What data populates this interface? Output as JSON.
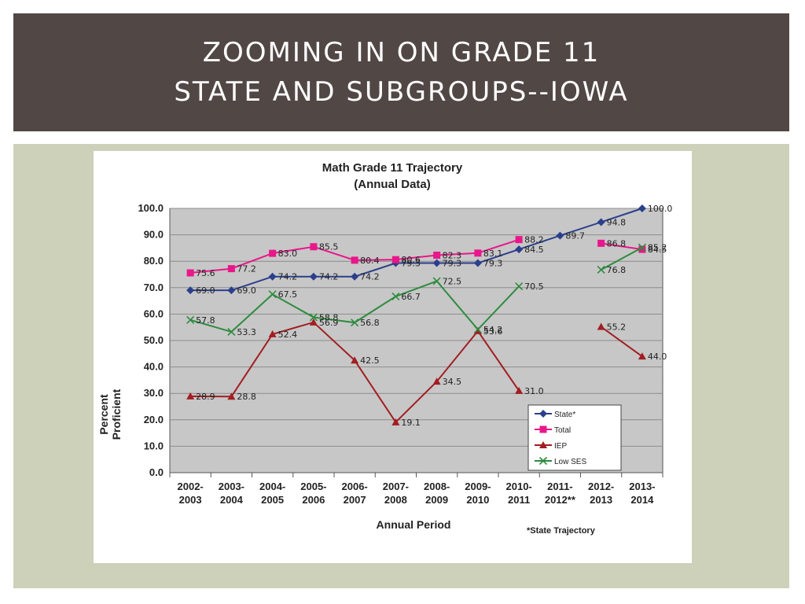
{
  "banner": {
    "line1": "ZOOMING IN ON GRADE 11",
    "line2": "STATE AND SUBGROUPS--IOWA"
  },
  "colors": {
    "banner_bg": "#514745",
    "panel_bg": "#cdd1b9",
    "plot_bg": "#c7c7c7",
    "state": "#2b3f8c",
    "total": "#e8178a",
    "iep": "#a11e22",
    "low_ses": "#2e8b3e"
  },
  "chart_data": {
    "type": "line",
    "title": "Math Grade 11 Trajectory",
    "subtitle": "(Annual Data)",
    "xlabel": "Annual Period",
    "ylabel": "Percent Proficient",
    "ylim": [
      0,
      100
    ],
    "yticks": [
      "0.0",
      "10.0",
      "20.0",
      "30.0",
      "40.0",
      "50.0",
      "60.0",
      "70.0",
      "80.0",
      "90.0",
      "100.0"
    ],
    "grid": true,
    "legend_position": "bottom-right",
    "categories": [
      [
        "2002-",
        "2003"
      ],
      [
        "2003-",
        "2004"
      ],
      [
        "2004-",
        "2005"
      ],
      [
        "2005-",
        "2006"
      ],
      [
        "2006-",
        "2007"
      ],
      [
        "2007-",
        "2008"
      ],
      [
        "2008-",
        "2009"
      ],
      [
        "2009-",
        "2010"
      ],
      [
        "2010-",
        "2011"
      ],
      [
        "2011-",
        "2012**"
      ],
      [
        "2012-",
        "2013"
      ],
      [
        "2013-",
        "2014"
      ]
    ],
    "series": [
      {
        "name": "State*",
        "key": "state",
        "marker": "diamond",
        "values": [
          69.0,
          69.0,
          74.2,
          74.2,
          74.2,
          79.3,
          79.3,
          79.3,
          84.5,
          89.7,
          94.8,
          100.0
        ],
        "labels": [
          "69.0",
          "69.0",
          "74.2",
          "74.2",
          "74.2",
          "79.3",
          "79.3",
          "79.3",
          "84.5",
          "89.7",
          "94.8",
          "100.0"
        ]
      },
      {
        "name": "Total",
        "key": "total",
        "marker": "square",
        "values": [
          75.6,
          77.2,
          83.0,
          85.5,
          80.4,
          80.6,
          82.3,
          83.1,
          88.2,
          null,
          86.8,
          84.5
        ],
        "labels": [
          "75.6",
          "77.2",
          "83.0",
          "85.5",
          "80.4",
          "80.6",
          "82.3",
          "83.1",
          "88.2",
          "",
          "86.8",
          "84.5"
        ]
      },
      {
        "name": "IEP",
        "key": "iep",
        "marker": "triangle",
        "values": [
          28.9,
          28.8,
          52.4,
          56.9,
          42.5,
          19.1,
          34.5,
          53.6,
          31.0,
          null,
          55.2,
          44.0
        ],
        "labels": [
          "28.9",
          "28.8",
          "52.4",
          "56.9",
          "42.5",
          "19.1",
          "34.5",
          "53.6",
          "31.0",
          "",
          "55.2",
          "44.0"
        ]
      },
      {
        "name": "Low SES",
        "key": "low_ses",
        "marker": "x",
        "values": [
          57.8,
          53.3,
          67.5,
          58.8,
          56.8,
          66.7,
          72.5,
          54.2,
          70.5,
          null,
          76.8,
          85.2
        ],
        "labels": [
          "57.8",
          "53.3",
          "67.5",
          "58.8",
          "56.8",
          "66.7",
          "72.5",
          "54.2",
          "70.5",
          "",
          "76.8",
          "85.2"
        ]
      }
    ],
    "annotations": [
      "*State Trajectory"
    ]
  }
}
